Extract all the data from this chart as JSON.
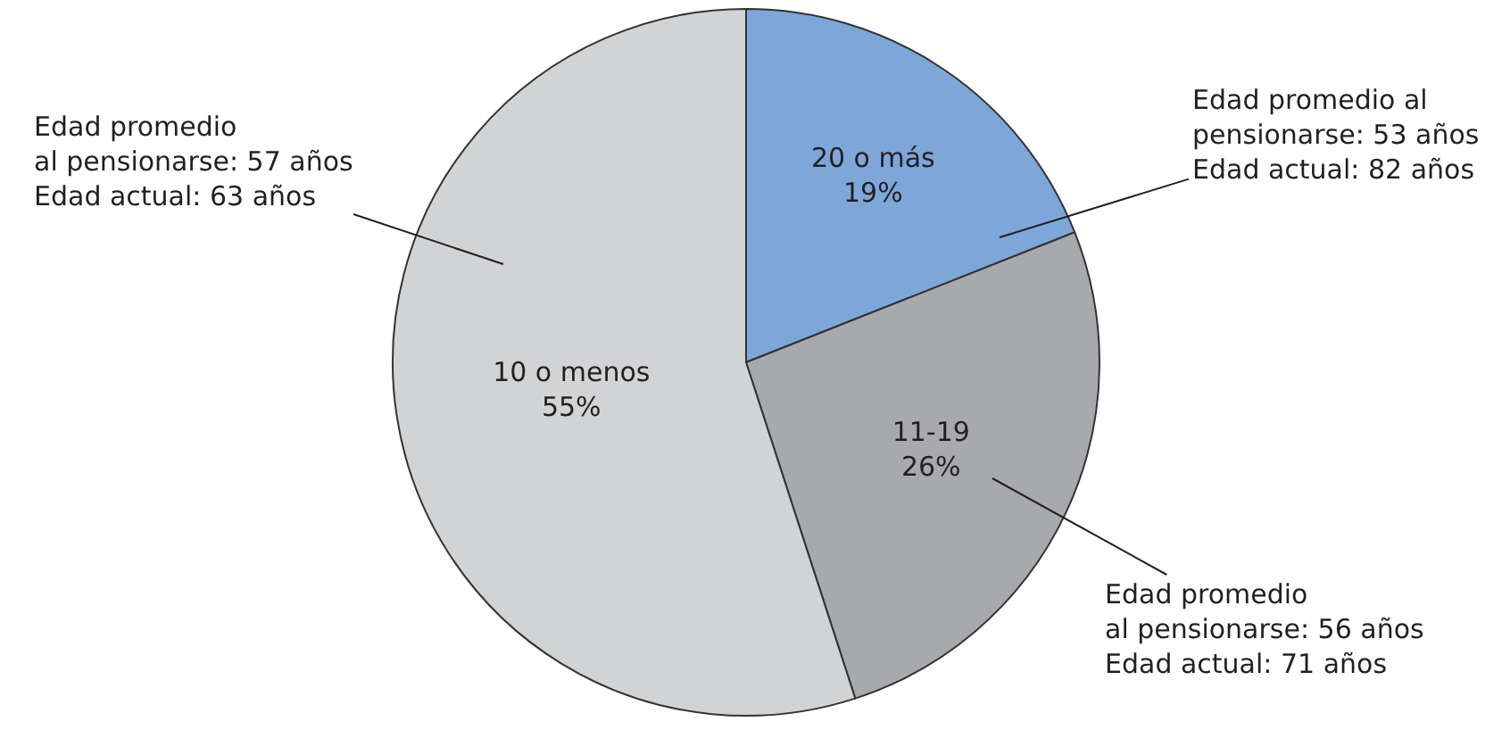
{
  "chart_data": {
    "type": "pie",
    "categories": [
      "20 o más",
      "11-19",
      "10 o menos"
    ],
    "values": [
      19,
      26,
      55
    ],
    "value_labels": [
      "19%",
      "26%",
      "55%"
    ],
    "colors": [
      "#7da7d9",
      "#a7a9ac",
      "#d1d3d4"
    ],
    "annotations": [
      "Edad promedio al\npensionarse: 53 años\nEdad actual: 82 años",
      "Edad promedio\nal pensionarse: 56 años\nEdad actual: 71 años",
      "Edad promedio\nal pensionarse: 57 años\nEdad actual: 63 años"
    ]
  }
}
